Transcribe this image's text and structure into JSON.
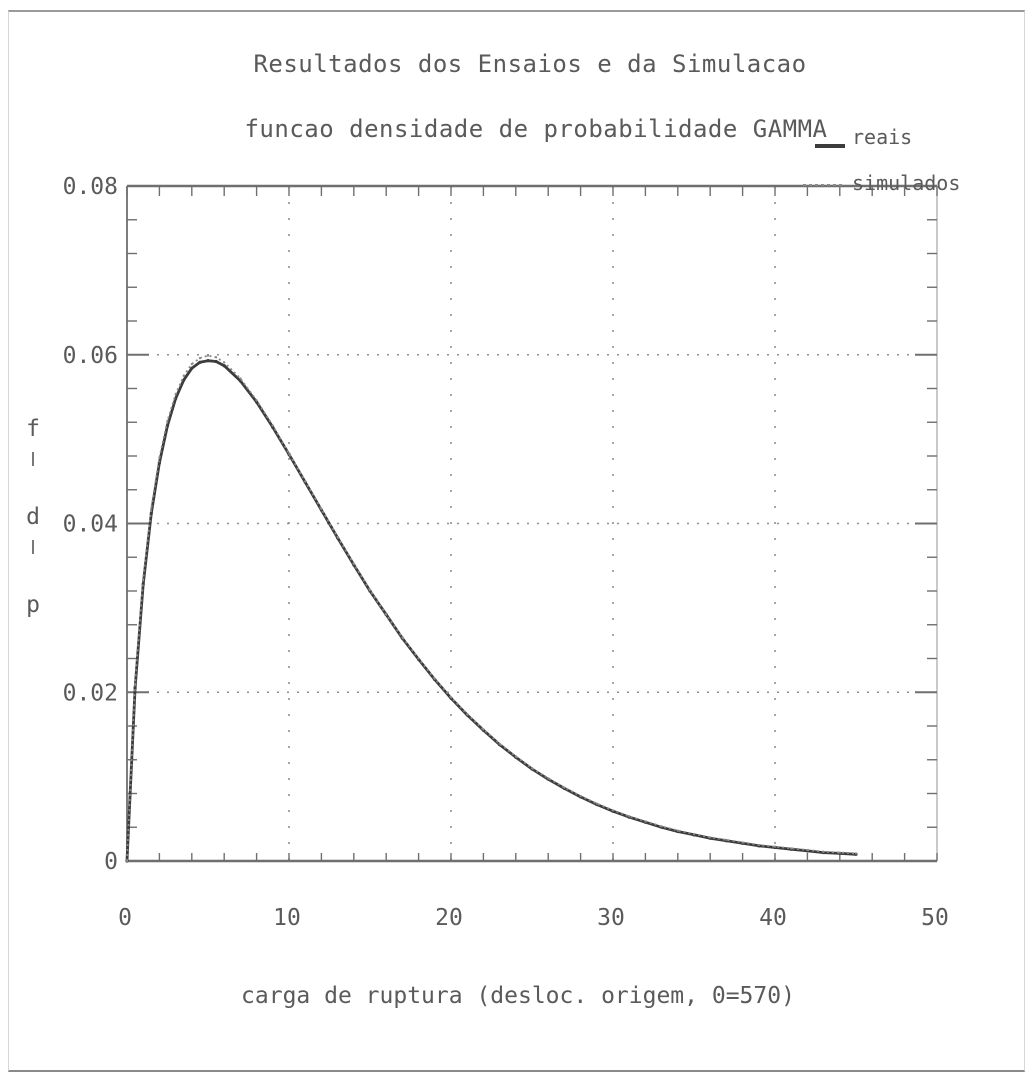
{
  "chart_data": {
    "type": "line",
    "title": "Resultados dos Ensaios e da Simulacao",
    "subtitle": "funcao densidade de probabilidade GAMMA",
    "xlabel": "carga de ruptura (desloc. origem, 0=570)",
    "ylabel": "f d p",
    "xlim": [
      0,
      50
    ],
    "ylim": [
      0,
      0.08
    ],
    "xticks": [
      "0",
      "10",
      "20",
      "30",
      "40",
      "50"
    ],
    "yticks": [
      "0",
      "0.02",
      "0.04",
      "0.06",
      "0.08"
    ],
    "grid": "dotted",
    "legend_position": "top-right",
    "legend": [
      "reais",
      "simulados"
    ],
    "series": [
      {
        "name": "reais",
        "style": "solid",
        "x": [
          0,
          0.5,
          1,
          1.5,
          2,
          2.5,
          3,
          3.5,
          4,
          4.5,
          5,
          5.5,
          6,
          7,
          8,
          9,
          10,
          11,
          12,
          13,
          14,
          15,
          16,
          17,
          18,
          19,
          20,
          21,
          22,
          23,
          24,
          25,
          26,
          27,
          28,
          29,
          30,
          31,
          32,
          33,
          34,
          35,
          36,
          37,
          38,
          39,
          40,
          41,
          42,
          43,
          44,
          45
        ],
        "y": [
          0,
          0.0205,
          0.0328,
          0.0412,
          0.0472,
          0.0516,
          0.0548,
          0.057,
          0.0584,
          0.0591,
          0.0593,
          0.0592,
          0.0587,
          0.0569,
          0.0544,
          0.0514,
          0.0482,
          0.0449,
          0.0416,
          0.0383,
          0.0351,
          0.032,
          0.0292,
          0.0264,
          0.0239,
          0.0215,
          0.0193,
          0.0173,
          0.0155,
          0.0138,
          0.0123,
          0.0109,
          0.0097,
          0.0086,
          0.0076,
          0.0067,
          0.0059,
          0.0052,
          0.0046,
          0.004,
          0.0035,
          0.0031,
          0.0027,
          0.0024,
          0.0021,
          0.0018,
          0.0016,
          0.0014,
          0.0012,
          0.001,
          0.0009,
          0.0008
        ]
      },
      {
        "name": "simulados",
        "style": "dotted",
        "x": [
          0,
          0.5,
          1,
          1.5,
          2,
          2.5,
          3,
          3.5,
          4,
          4.5,
          5,
          5.5,
          6,
          7,
          8,
          9,
          10,
          11,
          12,
          13,
          14,
          15,
          16,
          17,
          18,
          19,
          20,
          21,
          22,
          23,
          24,
          25,
          26,
          27,
          28,
          29,
          30,
          31,
          32,
          33,
          34,
          35,
          36,
          37,
          38,
          39,
          40,
          41,
          42,
          43,
          44,
          45
        ],
        "y": [
          0,
          0.021,
          0.0334,
          0.0418,
          0.0478,
          0.0522,
          0.0553,
          0.0575,
          0.0589,
          0.0596,
          0.0599,
          0.0597,
          0.0591,
          0.0572,
          0.0546,
          0.0516,
          0.0483,
          0.045,
          0.0417,
          0.0384,
          0.0352,
          0.0321,
          0.0292,
          0.0265,
          0.024,
          0.0216,
          0.0194,
          0.0174,
          0.0156,
          0.0139,
          0.0124,
          0.011,
          0.0098,
          0.0087,
          0.0077,
          0.0068,
          0.006,
          0.0053,
          0.0047,
          0.0041,
          0.0036,
          0.0032,
          0.0028,
          0.0025,
          0.0022,
          0.0019,
          0.0017,
          0.0015,
          0.0013,
          0.0011,
          0.001,
          0.0009
        ]
      }
    ]
  }
}
